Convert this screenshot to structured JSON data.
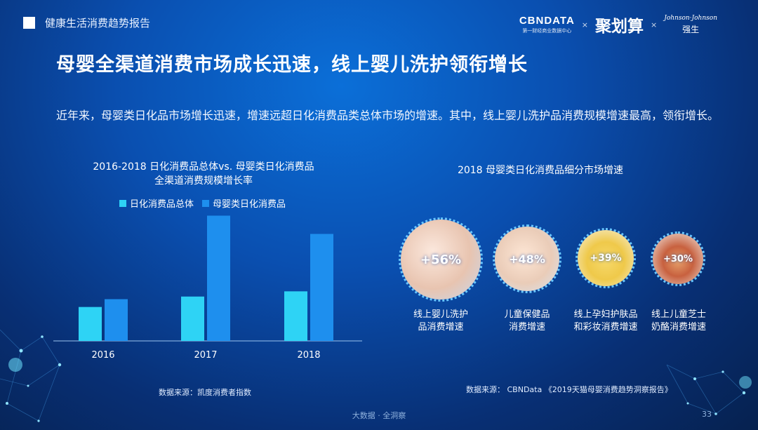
{
  "header": {
    "title": "健康生活消费趋势报告"
  },
  "logos": {
    "cbn_name": "CBNDATA",
    "cbn_sub": "第一财经商业数据中心",
    "x1": "×",
    "jhs": "聚划算",
    "x2": "×",
    "jnj_script": "Johnson·Johnson",
    "jnj_cn": "强生"
  },
  "main_title": "母婴全渠道消费市场成长迅速，线上婴儿洗护领衔增长",
  "intro": "近年来，母婴类日化品市场增长迅速，增速远超日化消费品类总体市场的增速。其中，线上婴儿洗护品消费规模增速最高，领衔增长。",
  "colors": {
    "series1": "#2ed3f5",
    "series2": "#1e8fee",
    "bubble_border": "#69c7ff"
  },
  "chart_data": [
    {
      "type": "bar",
      "title": "2016-2018 日化消费品总体vs. 母婴类日化消费品 全渠道消费规模增长率",
      "title_line1": "2016-2018 日化消费品总体vs. 母婴类日化消费品",
      "title_line2": "全渠道消费规模增长率",
      "categories": [
        "2016",
        "2017",
        "2018"
      ],
      "series": [
        {
          "name": "日化消费品总体",
          "values": [
            26,
            34,
            38
          ]
        },
        {
          "name": "母婴类日化消费品",
          "values": [
            32,
            96,
            82
          ]
        }
      ],
      "ylim": [
        0,
        100
      ],
      "legend_position": "top",
      "grid": false,
      "axis_labels_shown": false,
      "source": "数据来源：凯度消费者指数"
    },
    {
      "type": "bubble-list",
      "title": "2018 母婴类日化消费品细分市场增速",
      "items": [
        {
          "value": "+56%",
          "label_line1": "线上婴儿洗护",
          "label_line2": "品消费增速"
        },
        {
          "value": "+48%",
          "label_line1": "儿童保健品",
          "label_line2": "消费增速"
        },
        {
          "value": "+39%",
          "label_line1": "线上孕妇护肤品",
          "label_line2": "和彩妆消费增速"
        },
        {
          "value": "+30%",
          "label_line1": "线上儿童芝士",
          "label_line2": "奶酪消费增速"
        }
      ],
      "source": "数据来源：  CBNData 《2019天猫母婴消费趋势洞察报告》"
    }
  ],
  "footer": {
    "text": "大数据 · 全洞察",
    "page": "33"
  }
}
